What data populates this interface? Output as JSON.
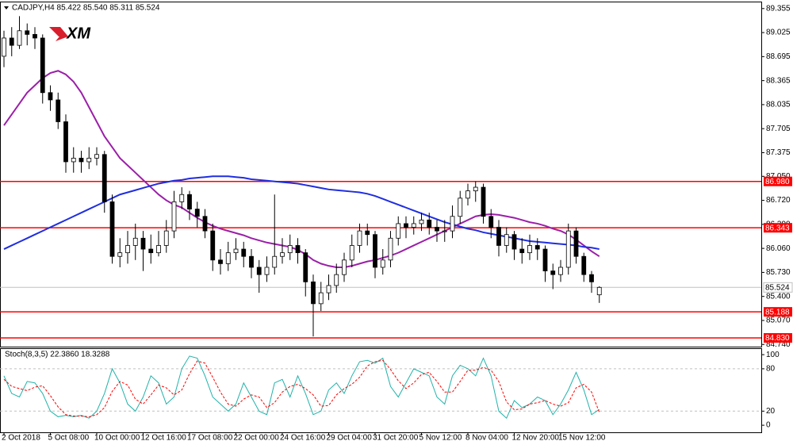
{
  "header": "CADJPY,H4  85.422 85.540 85.311 85.524",
  "logo": "XM",
  "chart_data": [
    {
      "type": "candlestick",
      "categories": [
        "2 Oct 2018",
        null,
        null,
        null,
        null,
        null,
        "5 Oct 08:00",
        null,
        null,
        null,
        null,
        null,
        "10 Oct 00:00",
        null,
        null,
        null,
        null,
        null,
        "12 Oct 16:00",
        null,
        null,
        null,
        null,
        null,
        "17 Oct 08:00",
        null,
        null,
        null,
        null,
        null,
        "22 Oct 00:00",
        null,
        null,
        null,
        null,
        null,
        "24 Oct 16:00",
        null,
        null,
        null,
        null,
        null,
        "29 Oct 04:00",
        null,
        null,
        null,
        null,
        null,
        "31 Oct 20:00",
        null,
        null,
        null,
        null,
        null,
        "5 Nov 12:00",
        null,
        null,
        null,
        null,
        null,
        "8 Nov 04:00",
        null,
        null,
        null,
        null,
        null,
        "12 Nov 20:00",
        null,
        null,
        null,
        null,
        null,
        "15 Nov 12:00",
        null,
        null,
        null,
        null,
        null
      ],
      "open": [
        88.7,
        88.95,
        88.85,
        89.05,
        89.0,
        88.95,
        88.2,
        88.1,
        87.8,
        87.25,
        87.3,
        87.25,
        87.3,
        87.35,
        86.7,
        85.95,
        86.0,
        86.1,
        86.2,
        86.05,
        86.0,
        86.1,
        86.3,
        86.7,
        86.8,
        86.6,
        86.5,
        86.3,
        85.9,
        85.85,
        86.0,
        86.05,
        85.95,
        85.8,
        85.7,
        85.8,
        85.95,
        86.0,
        86.1,
        86.0,
        85.6,
        85.3,
        85.45,
        85.55,
        85.7,
        85.9,
        86.1,
        86.3,
        86.25,
        85.8,
        85.9,
        86.2,
        86.4,
        86.35,
        86.4,
        86.45,
        86.35,
        86.3,
        86.3,
        86.5,
        86.75,
        86.85,
        86.9,
        86.5,
        86.35,
        86.1,
        86.25,
        86.05,
        86.0,
        86.1,
        86.05,
        85.75,
        85.7,
        85.8,
        86.3,
        85.95,
        85.7,
        85.422
      ],
      "high": [
        89.05,
        89.1,
        89.25,
        89.15,
        89.1,
        89.0,
        88.3,
        88.2,
        87.9,
        87.45,
        87.4,
        87.45,
        87.45,
        87.4,
        86.8,
        86.2,
        86.3,
        86.4,
        86.3,
        86.25,
        86.3,
        86.45,
        86.85,
        86.9,
        86.85,
        86.7,
        86.6,
        86.4,
        86.05,
        86.15,
        86.2,
        86.15,
        86.05,
        85.9,
        85.95,
        86.8,
        86.2,
        86.25,
        86.2,
        86.05,
        85.7,
        85.6,
        85.7,
        85.85,
        86.0,
        86.25,
        86.4,
        86.4,
        86.3,
        86.05,
        86.3,
        86.5,
        86.5,
        86.5,
        86.55,
        86.55,
        86.45,
        86.45,
        86.65,
        86.85,
        86.95,
        86.98,
        86.95,
        86.6,
        86.45,
        86.35,
        86.3,
        86.2,
        86.25,
        86.2,
        86.1,
        85.85,
        85.9,
        86.4,
        86.35,
        86.0,
        85.75,
        85.54
      ],
      "low": [
        88.55,
        88.7,
        88.8,
        88.85,
        88.8,
        88.05,
        87.95,
        87.7,
        87.1,
        87.1,
        87.1,
        87.15,
        87.2,
        86.55,
        85.85,
        85.8,
        85.85,
        85.9,
        85.75,
        85.85,
        85.95,
        86.0,
        86.2,
        86.6,
        86.45,
        86.35,
        86.2,
        85.75,
        85.7,
        85.75,
        85.9,
        85.8,
        85.65,
        85.45,
        85.6,
        85.7,
        85.85,
        85.9,
        85.85,
        85.4,
        84.85,
        85.2,
        85.35,
        85.45,
        85.6,
        85.8,
        86.0,
        86.1,
        85.65,
        85.7,
        85.8,
        86.1,
        86.2,
        86.25,
        86.3,
        86.25,
        86.15,
        86.15,
        86.2,
        86.4,
        86.65,
        86.7,
        86.4,
        86.2,
        85.95,
        86.0,
        85.9,
        85.85,
        85.9,
        85.9,
        85.6,
        85.5,
        85.6,
        85.7,
        85.85,
        85.6,
        85.45,
        85.311
      ],
      "close": [
        88.95,
        88.85,
        89.05,
        89.0,
        88.95,
        88.2,
        88.1,
        87.8,
        87.25,
        87.3,
        87.25,
        87.3,
        87.35,
        86.7,
        85.95,
        86.0,
        86.1,
        86.2,
        86.05,
        86.0,
        86.1,
        86.3,
        86.7,
        86.8,
        86.6,
        86.5,
        86.3,
        85.9,
        85.85,
        86.0,
        86.05,
        85.95,
        85.8,
        85.7,
        85.8,
        85.95,
        86.0,
        86.1,
        86.0,
        85.6,
        85.3,
        85.45,
        85.55,
        85.7,
        85.9,
        86.1,
        86.3,
        86.25,
        85.8,
        85.9,
        86.2,
        86.4,
        86.35,
        86.4,
        86.45,
        86.35,
        86.3,
        86.3,
        86.5,
        86.75,
        86.85,
        86.9,
        86.5,
        86.35,
        86.1,
        86.25,
        86.05,
        86.0,
        86.1,
        86.05,
        85.75,
        85.7,
        85.8,
        86.3,
        85.95,
        85.7,
        85.6,
        85.524
      ],
      "lines": [
        {
          "color": "#9b1fa8",
          "values": [
            87.75,
            87.9,
            88.05,
            88.2,
            88.3,
            88.4,
            88.47,
            88.5,
            88.45,
            88.35,
            88.2,
            88.0,
            87.8,
            87.6,
            87.45,
            87.3,
            87.2,
            87.1,
            87.0,
            86.9,
            86.8,
            86.72,
            86.66,
            86.62,
            86.55,
            86.48,
            86.42,
            86.37,
            86.33,
            86.3,
            86.27,
            86.24,
            86.2,
            86.17,
            86.14,
            86.12,
            86.1,
            86.08,
            86.04,
            85.98,
            85.9,
            85.85,
            85.82,
            85.8,
            85.8,
            85.82,
            85.85,
            85.88,
            85.9,
            85.93,
            85.96,
            86.0,
            86.05,
            86.1,
            86.15,
            86.2,
            86.25,
            86.3,
            86.35,
            86.4,
            86.45,
            86.5,
            86.52,
            86.53,
            86.52,
            86.5,
            86.48,
            86.45,
            86.42,
            86.4,
            86.37,
            86.33,
            86.3,
            86.25,
            86.18,
            86.1,
            86.02,
            85.95
          ]
        },
        {
          "color": "#1f2ee0",
          "values": [
            86.05,
            86.1,
            86.15,
            86.2,
            86.25,
            86.3,
            86.35,
            86.4,
            86.45,
            86.5,
            86.55,
            86.6,
            86.65,
            86.7,
            86.75,
            86.8,
            86.83,
            86.86,
            86.89,
            86.92,
            86.95,
            86.97,
            86.99,
            87.0,
            87.02,
            87.03,
            87.04,
            87.05,
            87.05,
            87.05,
            87.04,
            87.03,
            87.01,
            87.0,
            86.99,
            86.98,
            86.97,
            86.96,
            86.95,
            86.93,
            86.91,
            86.89,
            86.87,
            86.86,
            86.85,
            86.84,
            86.83,
            86.81,
            86.78,
            86.74,
            86.7,
            86.66,
            86.62,
            86.58,
            86.54,
            86.5,
            86.46,
            86.42,
            86.39,
            86.36,
            86.33,
            86.31,
            86.28,
            86.26,
            86.24,
            86.22,
            86.2,
            86.18,
            86.16,
            86.15,
            86.14,
            86.13,
            86.12,
            86.11,
            86.1,
            86.08,
            86.07,
            86.05
          ]
        }
      ],
      "levels": [
        {
          "value": 86.98,
          "label": "86.980",
          "color": "#ff0000"
        },
        {
          "value": 86.343,
          "label": "86.343",
          "color": "#ff0000"
        },
        {
          "value": 85.188,
          "label": "85.188",
          "color": "#ff0000"
        },
        {
          "value": 84.83,
          "label": "84.830",
          "color": "#ff0000"
        }
      ],
      "current": {
        "value": 85.524,
        "label": "85.524",
        "color": "#c0c0c0"
      },
      "ylim": [
        84.71,
        89.44
      ],
      "yticks": [
        89.355,
        89.025,
        88.695,
        88.365,
        88.035,
        87.705,
        87.375,
        {
          "value": 87.05,
          "label": "87.050"
        },
        {
          "value": 86.72,
          "label": "86.720"
        },
        {
          "value": 86.39,
          "label": "86.390"
        },
        {
          "value": 86.06,
          "label": "86.060"
        },
        {
          "value": 85.73,
          "label": "85.730"
        },
        {
          "value": 85.4,
          "label": "85.400"
        },
        {
          "value": 85.07,
          "label": "85.070"
        },
        {
          "value": 84.74,
          "label": "84.740"
        }
      ]
    },
    {
      "type": "line",
      "title": "Stoch(8,3,5) 22.3860 18.3288",
      "series": [
        {
          "color": "#20b2aa",
          "dashed": false,
          "values": [
            70,
            45,
            40,
            62,
            60,
            45,
            20,
            12,
            14,
            12,
            14,
            10,
            20,
            45,
            80,
            60,
            30,
            20,
            40,
            70,
            60,
            30,
            40,
            80,
            98,
            95,
            70,
            40,
            30,
            20,
            30,
            60,
            40,
            20,
            15,
            60,
            65,
            40,
            70,
            45,
            15,
            20,
            50,
            60,
            45,
            70,
            90,
            92,
            88,
            95,
            55,
            40,
            60,
            80,
            75,
            70,
            40,
            30,
            70,
            85,
            80,
            70,
            95,
            70,
            20,
            10,
            35,
            25,
            30,
            40,
            35,
            15,
            30,
            50,
            75,
            50,
            15,
            22.386
          ]
        },
        {
          "color": "#ff0000",
          "dashed": true,
          "values": [
            65,
            55,
            52,
            49,
            54,
            56,
            42,
            26,
            15,
            13,
            13,
            12,
            15,
            25,
            48,
            62,
            57,
            37,
            30,
            43,
            57,
            53,
            43,
            50,
            73,
            91,
            88,
            68,
            47,
            30,
            27,
            37,
            43,
            40,
            25,
            32,
            47,
            55,
            58,
            52,
            43,
            27,
            28,
            43,
            52,
            58,
            68,
            84,
            90,
            92,
            79,
            63,
            52,
            60,
            72,
            75,
            62,
            47,
            47,
            62,
            78,
            78,
            82,
            78,
            62,
            33,
            22,
            23,
            30,
            32,
            35,
            30,
            27,
            32,
            53,
            58,
            47,
            18.3288
          ]
        }
      ],
      "levels": [
        80,
        20
      ],
      "ylim": [
        -10,
        108
      ],
      "yticks": [
        100,
        80,
        20,
        0
      ]
    }
  ]
}
